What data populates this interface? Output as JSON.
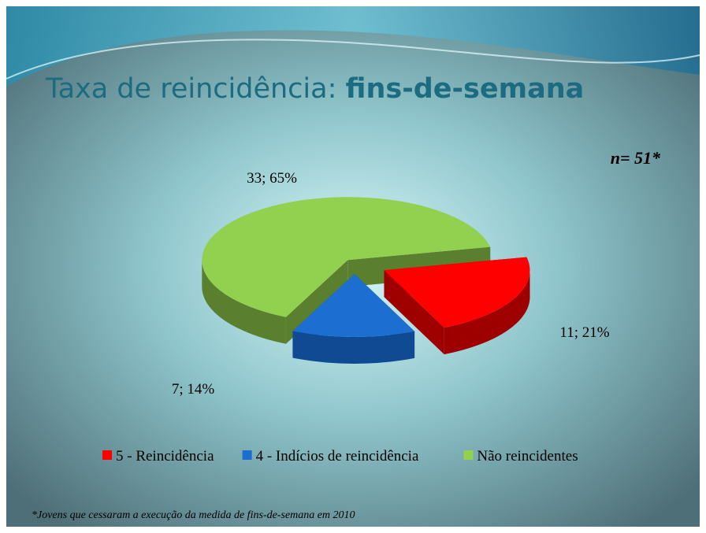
{
  "chart_data": {
    "type": "pie3d",
    "title": "Taxa de reincidência:",
    "title_emphasis": "fins-de-semana",
    "sample_note": "n= 51*",
    "footnote": "*Jovens que cessaram a execução da medida de fins-de-semana em 2010",
    "categories": [
      "5 - Reincidência",
      "4 - Indícios de reincidência",
      "Não reincidentes"
    ],
    "values": [
      11,
      7,
      33
    ],
    "value_labels": [
      "11; 21%",
      "7; 14%",
      "33; 65%"
    ],
    "colors": [
      "#ff0000",
      "#1c6fd0",
      "#92d050"
    ],
    "side_colors": [
      "#9e0000",
      "#0f4a92",
      "#5a7f2e"
    ],
    "legend": "bottom"
  }
}
